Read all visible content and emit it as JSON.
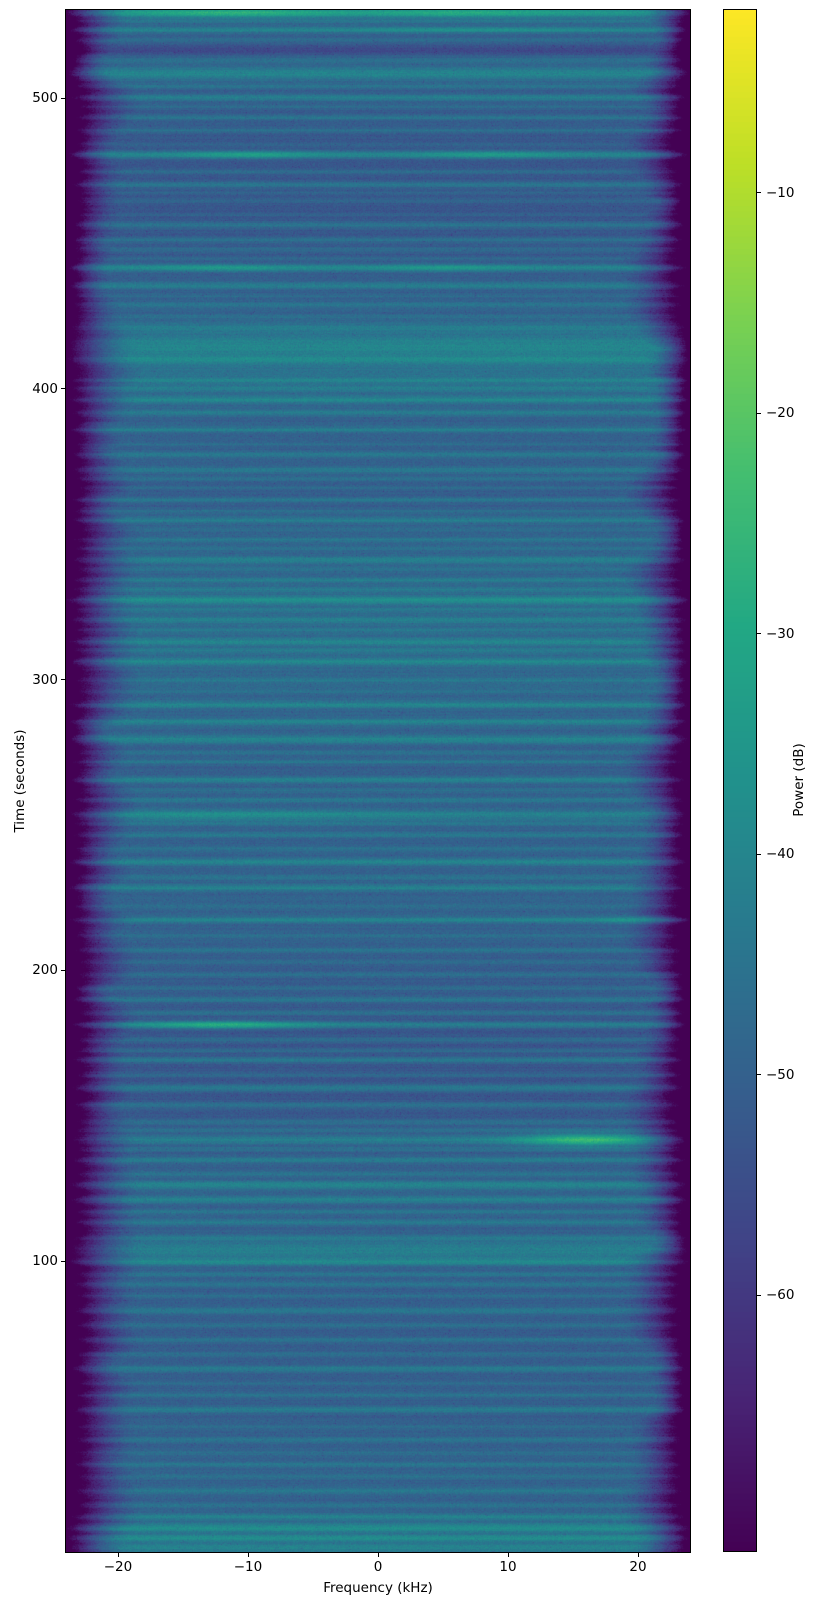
{
  "figure": {
    "background": "#ffffff",
    "title": ""
  },
  "chart_data": {
    "type": "heatmap",
    "subtype": "spectrogram",
    "title": "",
    "xlabel": "Frequency (kHz)",
    "ylabel": "Time (seconds)",
    "colorbar_label": "Power (dB)",
    "colormap": "viridis",
    "grid": false,
    "xlim": [
      -24,
      24
    ],
    "ylim": [
      0,
      530.3
    ],
    "x_ticks": [
      -20,
      -10,
      0,
      10,
      20
    ],
    "x_tick_labels": [
      "−20",
      "−10",
      "0",
      "10",
      "20"
    ],
    "y_ticks": [
      100,
      200,
      300,
      400,
      500
    ],
    "y_tick_labels": [
      "100",
      "200",
      "300",
      "400",
      "500"
    ],
    "colorbar_ticks": [
      -10,
      -20,
      -30,
      -40,
      -50,
      -60
    ],
    "colorbar_tick_labels": [
      "−10",
      "−20",
      "−30",
      "−40",
      "−50",
      "−60"
    ],
    "vmin": -71.6,
    "vmax": -1.7,
    "base_level_db": -50.2,
    "pixel_noise_db": 3.6,
    "band_edge_start_khz": {
      "left": -19.2,
      "right": 19.8
    },
    "band_edge_drop_db": 36,
    "stripes_format": "[time_s, sigma_s, amplitude_db] broadband horizontal bands",
    "stripes": [
      [
        1.5,
        1.2,
        9
      ],
      [
        4.8,
        0.9,
        11
      ],
      [
        8.3,
        1.1,
        12
      ],
      [
        12,
        0.8,
        8
      ],
      [
        16,
        0.6,
        5
      ],
      [
        21,
        0.7,
        6
      ],
      [
        26,
        0.6,
        5
      ],
      [
        30,
        0.7,
        6
      ],
      [
        34,
        0.6,
        4
      ],
      [
        38.5,
        0.7,
        6
      ],
      [
        43,
        0.6,
        4
      ],
      [
        49,
        0.8,
        8
      ],
      [
        54,
        0.7,
        6
      ],
      [
        58,
        0.6,
        4
      ],
      [
        63,
        0.8,
        8
      ],
      [
        68,
        0.6,
        5
      ],
      [
        73,
        0.7,
        6
      ],
      [
        78,
        0.6,
        5
      ],
      [
        83,
        0.8,
        7
      ],
      [
        88,
        0.6,
        5
      ],
      [
        92,
        0.6,
        6
      ],
      [
        95.5,
        0.6,
        6
      ],
      [
        99.7,
        0.9,
        10
      ],
      [
        103.9,
        2.2,
        9
      ],
      [
        108,
        0.6,
        6
      ],
      [
        113.5,
        0.7,
        7
      ],
      [
        117,
        0.6,
        6
      ],
      [
        121.1,
        0.9,
        9
      ],
      [
        126.2,
        1.0,
        10
      ],
      [
        130,
        0.6,
        6
      ],
      [
        134.8,
        0.8,
        9
      ],
      [
        138.5,
        0.6,
        6
      ],
      [
        141.7,
        1.1,
        10
      ],
      [
        145,
        0.6,
        6
      ],
      [
        147.9,
        0.7,
        7
      ],
      [
        153.7,
        0.7,
        8
      ],
      [
        159.6,
        0.9,
        10
      ],
      [
        164,
        0.6,
        5
      ],
      [
        169.2,
        0.8,
        9
      ],
      [
        172.5,
        0.6,
        6
      ],
      [
        176.1,
        0.6,
        6
      ],
      [
        181.3,
        0.8,
        10
      ],
      [
        185.4,
        0.6,
        7
      ],
      [
        189.9,
        0.7,
        8
      ],
      [
        194,
        0.6,
        5
      ],
      [
        198.5,
        0.6,
        5
      ],
      [
        203,
        0.5,
        4
      ],
      [
        207,
        0.6,
        5
      ],
      [
        212,
        0.5,
        4
      ],
      [
        217.4,
        0.7,
        10
      ],
      [
        222,
        0.5,
        4
      ],
      [
        228.4,
        0.8,
        9
      ],
      [
        232,
        0.6,
        5
      ],
      [
        237.3,
        0.8,
        10
      ],
      [
        242,
        0.6,
        5
      ],
      [
        246.6,
        0.7,
        7
      ],
      [
        250.5,
        0.6,
        6
      ],
      [
        253.5,
        1.3,
        9
      ],
      [
        258.6,
        0.7,
        7
      ],
      [
        262,
        0.6,
        5
      ],
      [
        265.5,
        0.8,
        9
      ],
      [
        271.7,
        0.6,
        6
      ],
      [
        275,
        0.5,
        5
      ],
      [
        279.3,
        1.0,
        10
      ],
      [
        285.5,
        0.8,
        9
      ],
      [
        291.3,
        0.8,
        9
      ],
      [
        296,
        0.5,
        4
      ],
      [
        299.9,
        0.6,
        5
      ],
      [
        306.1,
        0.8,
        9
      ],
      [
        310,
        0.6,
        5
      ],
      [
        313,
        0.8,
        8
      ],
      [
        317,
        0.5,
        4
      ],
      [
        320.5,
        0.7,
        7
      ],
      [
        324,
        0.5,
        5
      ],
      [
        327.4,
        0.9,
        11
      ],
      [
        331,
        0.6,
        5
      ],
      [
        334.3,
        0.6,
        6
      ],
      [
        338,
        0.5,
        4
      ],
      [
        341.2,
        0.8,
        8
      ],
      [
        345,
        0.5,
        4
      ],
      [
        348.1,
        0.6,
        6
      ],
      [
        351.5,
        0.5,
        4
      ],
      [
        354.9,
        0.8,
        8
      ],
      [
        358,
        0.5,
        4
      ],
      [
        361.8,
        0.6,
        6
      ],
      [
        366,
        0.5,
        4
      ],
      [
        369,
        0.5,
        5
      ],
      [
        372.1,
        0.8,
        8
      ],
      [
        377.3,
        0.8,
        8
      ],
      [
        381,
        0.5,
        5
      ],
      [
        385.9,
        0.8,
        8
      ],
      [
        391.7,
        0.7,
        7
      ],
      [
        396.2,
        0.8,
        8
      ],
      [
        400,
        0.6,
        5
      ],
      [
        403,
        0.6,
        5
      ],
      [
        407,
        9,
        5
      ],
      [
        410,
        1.0,
        7
      ],
      [
        415.2,
        2.4,
        7
      ],
      [
        421,
        1.2,
        6
      ],
      [
        425,
        0.6,
        4
      ],
      [
        428.9,
        0.7,
        6
      ],
      [
        432,
        0.5,
        4
      ],
      [
        435.5,
        0.9,
        9
      ],
      [
        441.6,
        0.9,
        11
      ],
      [
        445,
        0.5,
        4
      ],
      [
        448,
        0.6,
        5
      ],
      [
        451.3,
        0.7,
        7
      ],
      [
        456.4,
        0.8,
        8
      ],
      [
        460,
        0.5,
        4
      ],
      [
        464.7,
        0.6,
        5
      ],
      [
        467.5,
        0.5,
        4
      ],
      [
        470.2,
        0.8,
        8
      ],
      [
        474.7,
        0.6,
        6
      ],
      [
        480.5,
        0.9,
        12
      ],
      [
        484,
        0.5,
        4
      ],
      [
        488.8,
        0.6,
        6
      ],
      [
        493.3,
        0.7,
        7
      ],
      [
        497,
        0.5,
        4
      ],
      [
        500.2,
        0.8,
        9
      ],
      [
        504,
        0.6,
        5
      ],
      [
        508.4,
        1.6,
        10
      ],
      [
        513,
        0.6,
        4
      ],
      [
        516.6,
        1.2,
        -6
      ],
      [
        520,
        0.5,
        4
      ],
      [
        523.5,
        0.7,
        9
      ],
      [
        526.5,
        0.6,
        5
      ],
      [
        529.3,
        1.0,
        14
      ]
    ],
    "events_format": "[time_s, sigma_s, freq_center_khz, freq_sigma_khz, amplitude_db] localized bright spots",
    "events": [
      [
        141.7,
        1.6,
        16,
        3.5,
        18
      ],
      [
        181.3,
        1.0,
        -12,
        4.5,
        14
      ],
      [
        217.4,
        0.8,
        21.5,
        2.5,
        8
      ],
      [
        253.5,
        1.4,
        -12,
        8,
        4
      ],
      [
        441.6,
        0.9,
        -12,
        4,
        6
      ],
      [
        441.6,
        0.9,
        5,
        4,
        6
      ],
      [
        480.5,
        0.9,
        -10,
        3.5,
        8
      ],
      [
        480.5,
        0.9,
        8.5,
        3.5,
        7
      ],
      [
        523.5,
        0.7,
        7,
        6,
        4
      ],
      [
        529.3,
        1.1,
        -11,
        5,
        9
      ],
      [
        529.3,
        1.1,
        6.5,
        5,
        7
      ]
    ]
  }
}
